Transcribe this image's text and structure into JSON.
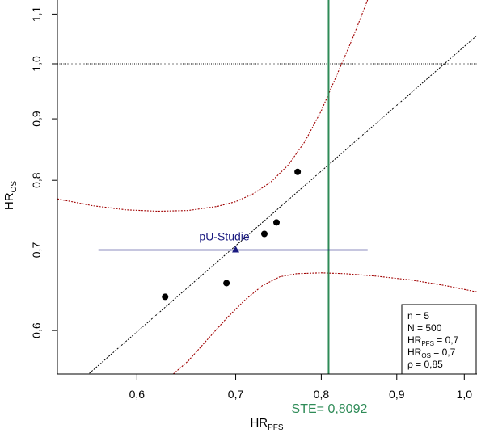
{
  "chart_data": {
    "type": "scatter",
    "x_scale": "log",
    "y_scale": "log",
    "xlim": [
      0.53,
      1.02
    ],
    "ylim": [
      0.552,
      1.13
    ],
    "xticks": [
      {
        "value": 0.6,
        "label": "0,6"
      },
      {
        "value": 0.7,
        "label": "0,7"
      },
      {
        "value": 0.8,
        "label": "0,8"
      },
      {
        "value": 0.9,
        "label": "0,9"
      },
      {
        "value": 1.0,
        "label": "1,0"
      }
    ],
    "yticks": [
      {
        "value": 0.6,
        "label": "0,6"
      },
      {
        "value": 0.7,
        "label": "0,7"
      },
      {
        "value": 0.8,
        "label": "0,8"
      },
      {
        "value": 0.9,
        "label": "0,9"
      },
      {
        "value": 1.0,
        "label": "1,0"
      },
      {
        "value": 1.1,
        "label": "1,1"
      }
    ],
    "xlabel": {
      "main": "HR",
      "sub": "PFS"
    },
    "ylabel": {
      "main": "HR",
      "sub": "OS"
    },
    "points": [
      {
        "x": 0.627,
        "y": 0.64
      },
      {
        "x": 0.69,
        "y": 0.657
      },
      {
        "x": 0.732,
        "y": 0.722
      },
      {
        "x": 0.746,
        "y": 0.738
      },
      {
        "x": 0.771,
        "y": 0.813
      }
    ],
    "regression_line": {
      "color": "#000000",
      "points": [
        [
          0.53,
          0.524
        ],
        [
          1.02,
          1.056
        ]
      ]
    },
    "prediction_band": {
      "color": "#a00000",
      "upper": [
        [
          0.53,
          0.772
        ],
        [
          0.56,
          0.762
        ],
        [
          0.59,
          0.756
        ],
        [
          0.62,
          0.754
        ],
        [
          0.65,
          0.755
        ],
        [
          0.68,
          0.761
        ],
        [
          0.7,
          0.768
        ],
        [
          0.72,
          0.78
        ],
        [
          0.74,
          0.798
        ],
        [
          0.76,
          0.824
        ],
        [
          0.78,
          0.862
        ],
        [
          0.8,
          0.914
        ],
        [
          0.82,
          0.98
        ],
        [
          0.84,
          1.05
        ],
        [
          0.86,
          1.13
        ]
      ],
      "lower": [
        [
          0.635,
          0.552
        ],
        [
          0.65,
          0.566
        ],
        [
          0.67,
          0.59
        ],
        [
          0.69,
          0.614
        ],
        [
          0.71,
          0.636
        ],
        [
          0.73,
          0.654
        ],
        [
          0.75,
          0.665
        ],
        [
          0.77,
          0.669
        ],
        [
          0.8,
          0.67
        ],
        [
          0.83,
          0.669
        ],
        [
          0.87,
          0.666
        ],
        [
          0.92,
          0.661
        ],
        [
          0.97,
          0.654
        ],
        [
          1.02,
          0.646
        ]
      ]
    },
    "reference_line_y": 1.0,
    "ste_line": {
      "x": 0.8092,
      "label": "STE= 0,8092",
      "color": "#2e8b57"
    },
    "study": {
      "label": "pU-Studie",
      "x": 0.7,
      "y": 0.7,
      "ci": [
        0.565,
        0.86
      ],
      "color": "#1a1a80"
    },
    "legend": {
      "placement": "bottom-right",
      "entries": [
        {
          "main": "n = 5",
          "sub": "",
          "rest": ""
        },
        {
          "main": "N = 500",
          "sub": "",
          "rest": ""
        },
        {
          "main": "HR",
          "sub": "PFS",
          "rest": " = 0,7"
        },
        {
          "main": "HR",
          "sub": "OS",
          "rest": " = 0,7"
        },
        {
          "main": "ρ = 0,85",
          "sub": "",
          "rest": ""
        }
      ]
    }
  }
}
